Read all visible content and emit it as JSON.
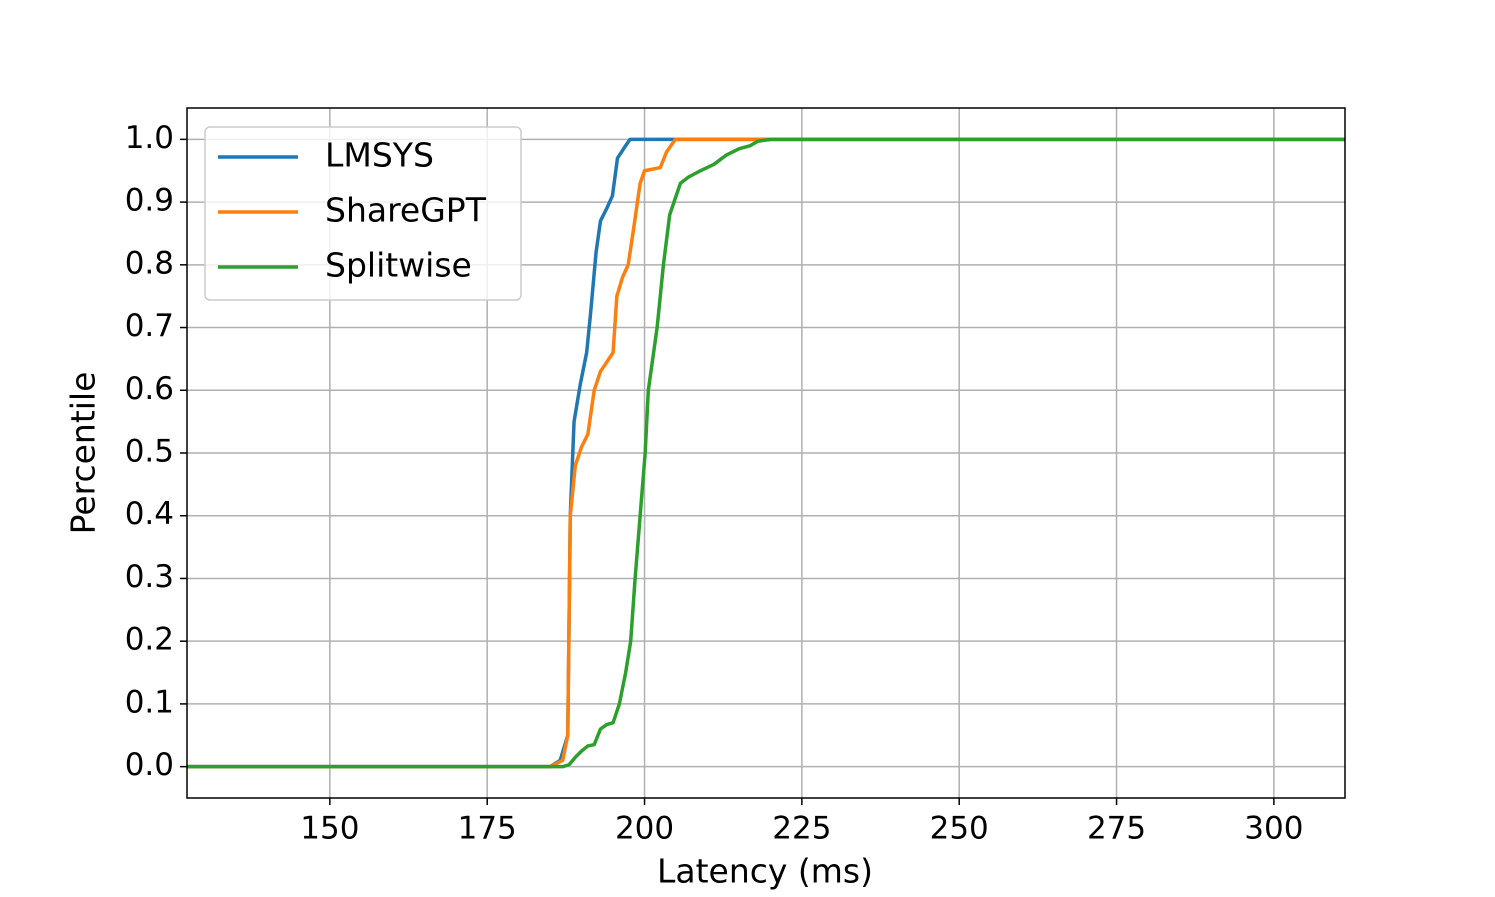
{
  "chart_data": {
    "type": "line",
    "x_label": "Latency (ms)",
    "y_label": "Percentile",
    "xlim": [
      127.3,
      311.3
    ],
    "ylim": [
      -0.05,
      1.05
    ],
    "xticks": [
      150,
      175,
      200,
      225,
      250,
      275,
      300
    ],
    "yticks": [
      {
        "value": 0,
        "label": "0.0"
      },
      0.1,
      0.2,
      0.3,
      0.4,
      0.5,
      0.6,
      0.7,
      0.8,
      0.9,
      {
        "value": 1,
        "label": "1.0"
      }
    ],
    "grid": true,
    "legend": "upper left",
    "series": [
      {
        "name": "LMSYS",
        "color": "#1f77b4",
        "x": [
          127.3,
          185,
          186.6,
          187.8,
          188.2,
          188.8,
          189.8,
          190.8,
          191.4,
          192.3,
          193,
          194,
          194.9,
          195.7,
          197,
          197.7,
          311.3
        ],
        "values": [
          0,
          0,
          0.01,
          0.05,
          0.4,
          0.55,
          0.61,
          0.66,
          0.72,
          0.82,
          0.87,
          0.89,
          0.91,
          0.97,
          0.99,
          1.0,
          1.0
        ]
      },
      {
        "name": "ShareGPT",
        "color": "#ff7f0e",
        "x": [
          127.3,
          185,
          187,
          187.8,
          188.2,
          189,
          190,
          191,
          192,
          193,
          194,
          195,
          195.6,
          196.5,
          197.4,
          198.3,
          199.3,
          200,
          202.5,
          203.5,
          204.9,
          311.3
        ],
        "values": [
          0,
          0,
          0.01,
          0.05,
          0.4,
          0.48,
          0.51,
          0.53,
          0.6,
          0.63,
          0.645,
          0.66,
          0.75,
          0.78,
          0.8,
          0.86,
          0.93,
          0.95,
          0.955,
          0.98,
          1.0,
          1.0
        ]
      },
      {
        "name": "Splitwise",
        "color": "#2ca02c",
        "x": [
          127.3,
          187,
          188,
          189,
          190,
          191,
          192,
          193,
          194,
          195,
          196,
          197,
          197.8,
          198.5,
          199.3,
          200.1,
          200.6,
          201.3,
          202,
          203,
          204,
          205.7,
          207,
          208.9,
          211,
          213,
          215,
          216.8,
          218,
          220,
          311.3
        ],
        "values": [
          0,
          0,
          0.003,
          0.015,
          0.025,
          0.033,
          0.035,
          0.06,
          0.067,
          0.07,
          0.1,
          0.15,
          0.2,
          0.3,
          0.4,
          0.5,
          0.6,
          0.65,
          0.7,
          0.8,
          0.88,
          0.93,
          0.94,
          0.95,
          0.96,
          0.975,
          0.985,
          0.99,
          0.997,
          1.0,
          1.0
        ]
      }
    ]
  }
}
